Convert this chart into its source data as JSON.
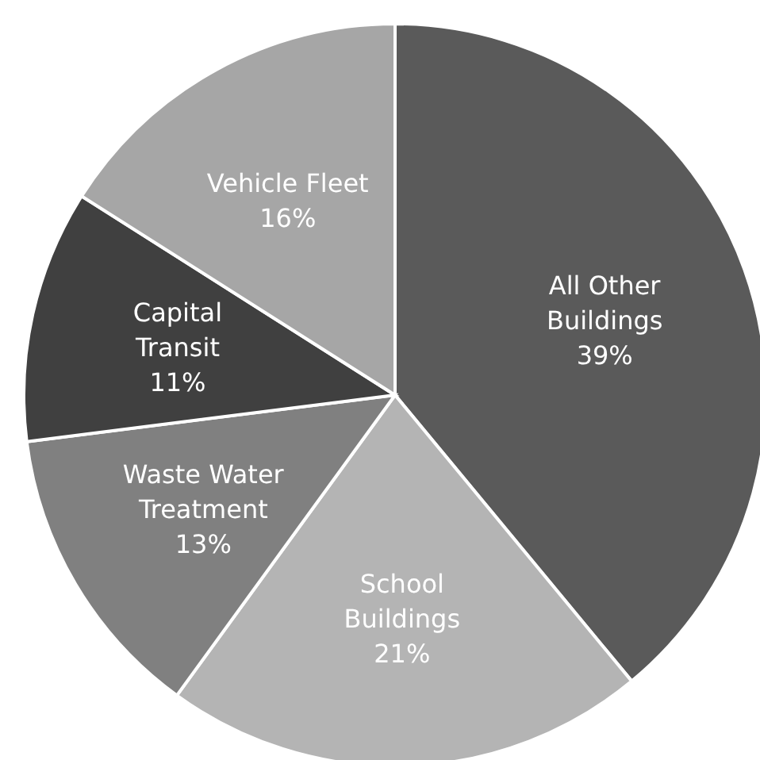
{
  "chart_data": {
    "type": "pie",
    "categories": [
      "All Other Buildings",
      "School Buildings",
      "Waste Water Treatment",
      "Capital Transit",
      "Vehicle Fleet"
    ],
    "values": [
      39,
      21,
      13,
      11,
      16
    ],
    "value_labels": [
      "39%",
      "21%",
      "13%",
      "11%",
      "16%"
    ],
    "colors": [
      "#5a5a5a",
      "#b4b4b4",
      "#808080",
      "#404040",
      "#a6a6a6"
    ],
    "legend": false
  }
}
